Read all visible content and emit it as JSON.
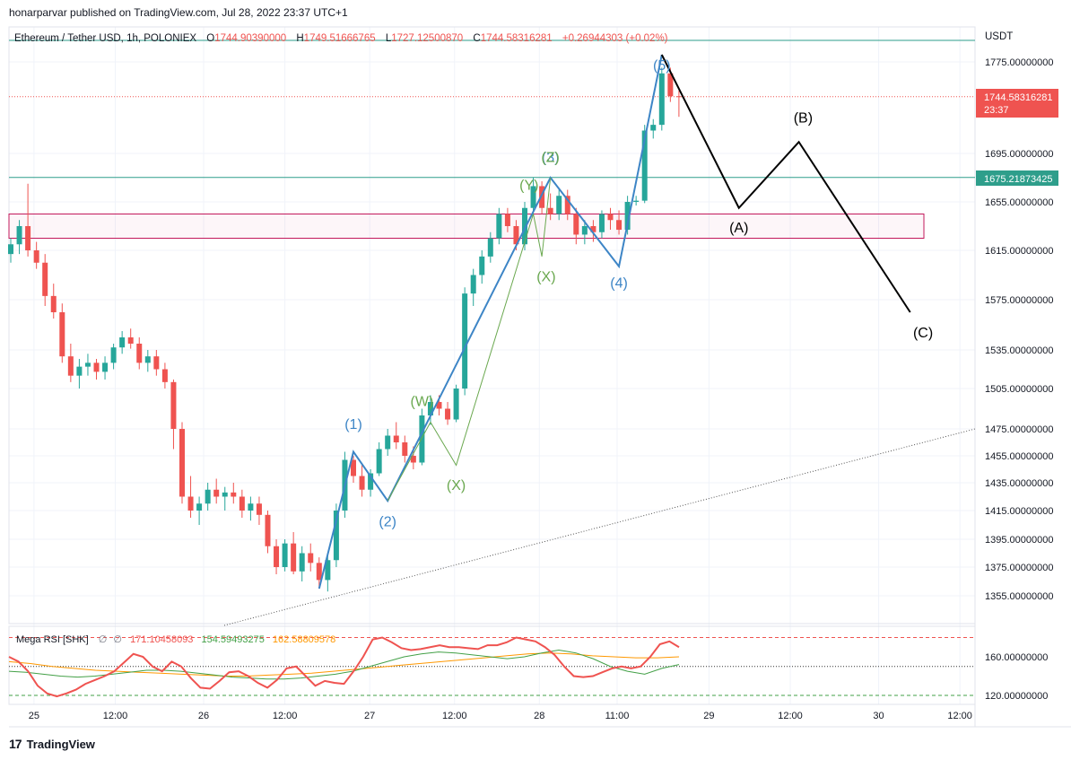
{
  "header": {
    "published_by": "honarparvar published on TradingView.com, Jul 28, 2022 23:37 UTC+1"
  },
  "footer": {
    "brand": "TradingView",
    "logo_text": "17"
  },
  "colors": {
    "bull": "#26a69a",
    "bear": "#ef5350",
    "wave_blue": "#3d85c6",
    "wave_green": "#6aa84f",
    "resistance": "#2e9e8b",
    "zone": "#c2185b",
    "grid": "#f0f3fa",
    "rsi_main": "#ef5350",
    "rsi_green": "#43a047",
    "rsi_orange": "#ff9800"
  },
  "chart_data": {
    "type": "candlestick",
    "symbol_info": {
      "name": "Ethereum / Tether USD, 1h, POLONIEX",
      "o_label": "O",
      "o": "1744.90390000",
      "h_label": "H",
      "h": "1749.51666765",
      "l_label": "L",
      "l": "1727.12500870",
      "c_label": "C",
      "c": "1744.58316281",
      "change": "+0.26944303 (+0.02%)"
    },
    "currency": "USDT",
    "y_ticks": [
      "1775.00000000",
      "1695.00000000",
      "1655.00000000",
      "1615.00000000",
      "1575.00000000",
      "1535.00000000",
      "1505.00000000",
      "1475.00000000",
      "1455.00000000",
      "1435.00000000",
      "1415.00000000",
      "1395.00000000",
      "1375.00000000",
      "1355.00000000"
    ],
    "y_tick_values": [
      1775,
      1695,
      1655,
      1615,
      1575,
      1535,
      1505,
      1475,
      1455,
      1435,
      1415,
      1395,
      1375,
      1355
    ],
    "x_ticks": [
      "25",
      "12:00",
      "26",
      "12:00",
      "27",
      "12:00",
      "28",
      "11:00",
      "29",
      "12:00",
      "30",
      "12:00"
    ],
    "x_tick_index": [
      2,
      25,
      50,
      73,
      97,
      121,
      145,
      167,
      193,
      216,
      241,
      264
    ],
    "last_price": {
      "value": 1744.58316281,
      "label": "1744.58316281",
      "countdown": "23:37"
    },
    "resistance": {
      "value": 1675.21873425,
      "label": "1675.21873425"
    },
    "zone": {
      "top": 1645,
      "bottom": 1625,
      "start_index": 0,
      "end_index": 262
    },
    "ohlc": [
      [
        1612,
        1625,
        1605,
        1620
      ],
      [
        1620,
        1640,
        1612,
        1635
      ],
      [
        1635,
        1670,
        1610,
        1615
      ],
      [
        1615,
        1622,
        1600,
        1605
      ],
      [
        1605,
        1612,
        1570,
        1578
      ],
      [
        1578,
        1588,
        1560,
        1565
      ],
      [
        1565,
        1572,
        1525,
        1530
      ],
      [
        1530,
        1540,
        1510,
        1515
      ],
      [
        1515,
        1528,
        1505,
        1522
      ],
      [
        1522,
        1532,
        1515,
        1525
      ],
      [
        1525,
        1528,
        1512,
        1518
      ],
      [
        1518,
        1530,
        1512,
        1525
      ],
      [
        1525,
        1540,
        1520,
        1537
      ],
      [
        1537,
        1550,
        1532,
        1545
      ],
      [
        1545,
        1552,
        1536,
        1540
      ],
      [
        1540,
        1545,
        1520,
        1525
      ],
      [
        1525,
        1535,
        1518,
        1530
      ],
      [
        1530,
        1535,
        1515,
        1520
      ],
      [
        1520,
        1525,
        1505,
        1510
      ],
      [
        1510,
        1512,
        1460,
        1475
      ],
      [
        1475,
        1480,
        1420,
        1425
      ],
      [
        1425,
        1440,
        1410,
        1415
      ],
      [
        1415,
        1425,
        1405,
        1420
      ],
      [
        1420,
        1435,
        1415,
        1430
      ],
      [
        1430,
        1438,
        1420,
        1425
      ],
      [
        1425,
        1432,
        1415,
        1428
      ],
      [
        1428,
        1435,
        1420,
        1425
      ],
      [
        1425,
        1430,
        1410,
        1415
      ],
      [
        1415,
        1425,
        1408,
        1420
      ],
      [
        1420,
        1425,
        1405,
        1412
      ],
      [
        1412,
        1415,
        1385,
        1390
      ],
      [
        1390,
        1395,
        1370,
        1375
      ],
      [
        1375,
        1395,
        1372,
        1392
      ],
      [
        1392,
        1400,
        1370,
        1372
      ],
      [
        1372,
        1390,
        1365,
        1385
      ],
      [
        1385,
        1392,
        1372,
        1378
      ],
      [
        1378,
        1382,
        1360,
        1366
      ],
      [
        1366,
        1385,
        1358,
        1380
      ],
      [
        1380,
        1420,
        1375,
        1415
      ],
      [
        1415,
        1458,
        1410,
        1452
      ],
      [
        1452,
        1455,
        1435,
        1440
      ],
      [
        1440,
        1448,
        1425,
        1430
      ],
      [
        1430,
        1445,
        1425,
        1442
      ],
      [
        1442,
        1465,
        1440,
        1460
      ],
      [
        1460,
        1475,
        1455,
        1470
      ],
      [
        1470,
        1480,
        1460,
        1465
      ],
      [
        1465,
        1470,
        1450,
        1455
      ],
      [
        1455,
        1462,
        1445,
        1450
      ],
      [
        1450,
        1490,
        1448,
        1485
      ],
      [
        1485,
        1500,
        1478,
        1495
      ],
      [
        1495,
        1500,
        1485,
        1490
      ],
      [
        1490,
        1495,
        1478,
        1482
      ],
      [
        1482,
        1508,
        1480,
        1505
      ],
      [
        1505,
        1585,
        1500,
        1580
      ],
      [
        1580,
        1600,
        1570,
        1595
      ],
      [
        1595,
        1615,
        1588,
        1610
      ],
      [
        1610,
        1630,
        1605,
        1625
      ],
      [
        1625,
        1650,
        1620,
        1645
      ],
      [
        1645,
        1650,
        1630,
        1635
      ],
      [
        1635,
        1640,
        1615,
        1620
      ],
      [
        1620,
        1655,
        1615,
        1650
      ],
      [
        1650,
        1675,
        1645,
        1668
      ],
      [
        1668,
        1672,
        1645,
        1650
      ],
      [
        1650,
        1662,
        1640,
        1645
      ],
      [
        1645,
        1665,
        1640,
        1660
      ],
      [
        1660,
        1665,
        1640,
        1645
      ],
      [
        1645,
        1650,
        1620,
        1628
      ],
      [
        1628,
        1640,
        1620,
        1635
      ],
      [
        1635,
        1640,
        1622,
        1630
      ],
      [
        1630,
        1648,
        1625,
        1645
      ],
      [
        1645,
        1650,
        1632,
        1640
      ],
      [
        1640,
        1648,
        1628,
        1632
      ],
      [
        1632,
        1660,
        1628,
        1655
      ],
      [
        1655,
        1660,
        1652,
        1656
      ],
      [
        1656,
        1720,
        1654,
        1715
      ],
      [
        1715,
        1725,
        1708,
        1720
      ],
      [
        1720,
        1770,
        1715,
        1765
      ],
      [
        1765,
        1770,
        1740,
        1745
      ],
      [
        1745,
        1750,
        1727,
        1744.58
      ]
    ],
    "rsi": {
      "title": "Mega RSI [SHK]",
      "value1": "171.10458093",
      "value2": "154.59493275",
      "value3": "162.58809578",
      "y_ticks": [
        "160.00000000",
        "120.00000000"
      ],
      "y_tick_values": [
        160,
        120
      ],
      "upper_level": 180,
      "mid_level": 150,
      "lower_level": 120,
      "main": [
        160,
        155,
        145,
        130,
        122,
        119,
        122,
        126,
        132,
        136,
        140,
        145,
        154,
        163,
        160,
        150,
        145,
        155,
        150,
        138,
        128,
        127,
        135,
        144,
        145,
        140,
        133,
        128,
        136,
        148,
        150,
        140,
        130,
        135,
        133,
        132,
        145,
        160,
        178,
        180,
        175,
        169,
        167,
        168,
        170,
        172,
        170,
        170,
        169,
        168,
        172,
        172,
        175,
        180,
        178,
        176,
        170,
        162,
        150,
        140,
        139,
        140,
        144,
        148,
        150,
        148,
        150,
        160,
        173,
        176,
        170
      ],
      "green": [
        145,
        144,
        142,
        140,
        139,
        140,
        142,
        144,
        146,
        146,
        145,
        143,
        141,
        139,
        138,
        137,
        137,
        138,
        140,
        142,
        145,
        150,
        155,
        160,
        163,
        165,
        164,
        162,
        160,
        158,
        160,
        164,
        167,
        164,
        158,
        150,
        145,
        142,
        148,
        152
      ],
      "orange": [
        155,
        153,
        150,
        148,
        146,
        145,
        144,
        143,
        142,
        141,
        140,
        140,
        141,
        142,
        143,
        145,
        147,
        149,
        151,
        153,
        155,
        157,
        159,
        161,
        163,
        164,
        163,
        161,
        160,
        159,
        159,
        160
      ]
    },
    "waves": {
      "blue": [
        [
          "1",
          40,
          1458
        ],
        [
          "2",
          44,
          1422
        ],
        [
          "3",
          63,
          1675
        ],
        [
          "4",
          71,
          1602
        ],
        [
          "5",
          76,
          1783
        ]
      ],
      "blue_labels": {
        "w1": "(1)",
        "w2": "(2)",
        "w3": "(3)",
        "w4": "(4)",
        "w5": "(5)"
      },
      "green_labels": {
        "w": "(W)",
        "x1": "(X)",
        "y": "(Y)",
        "x2": "(X)",
        "z": "(Z)"
      },
      "projection": [
        [
          76,
          1783
        ],
        [
          85,
          1650
        ],
        [
          92,
          1705
        ],
        [
          105,
          1565
        ]
      ],
      "projection_labels": {
        "a": "(A)",
        "b": "(B)",
        "c": "(C)"
      }
    }
  }
}
